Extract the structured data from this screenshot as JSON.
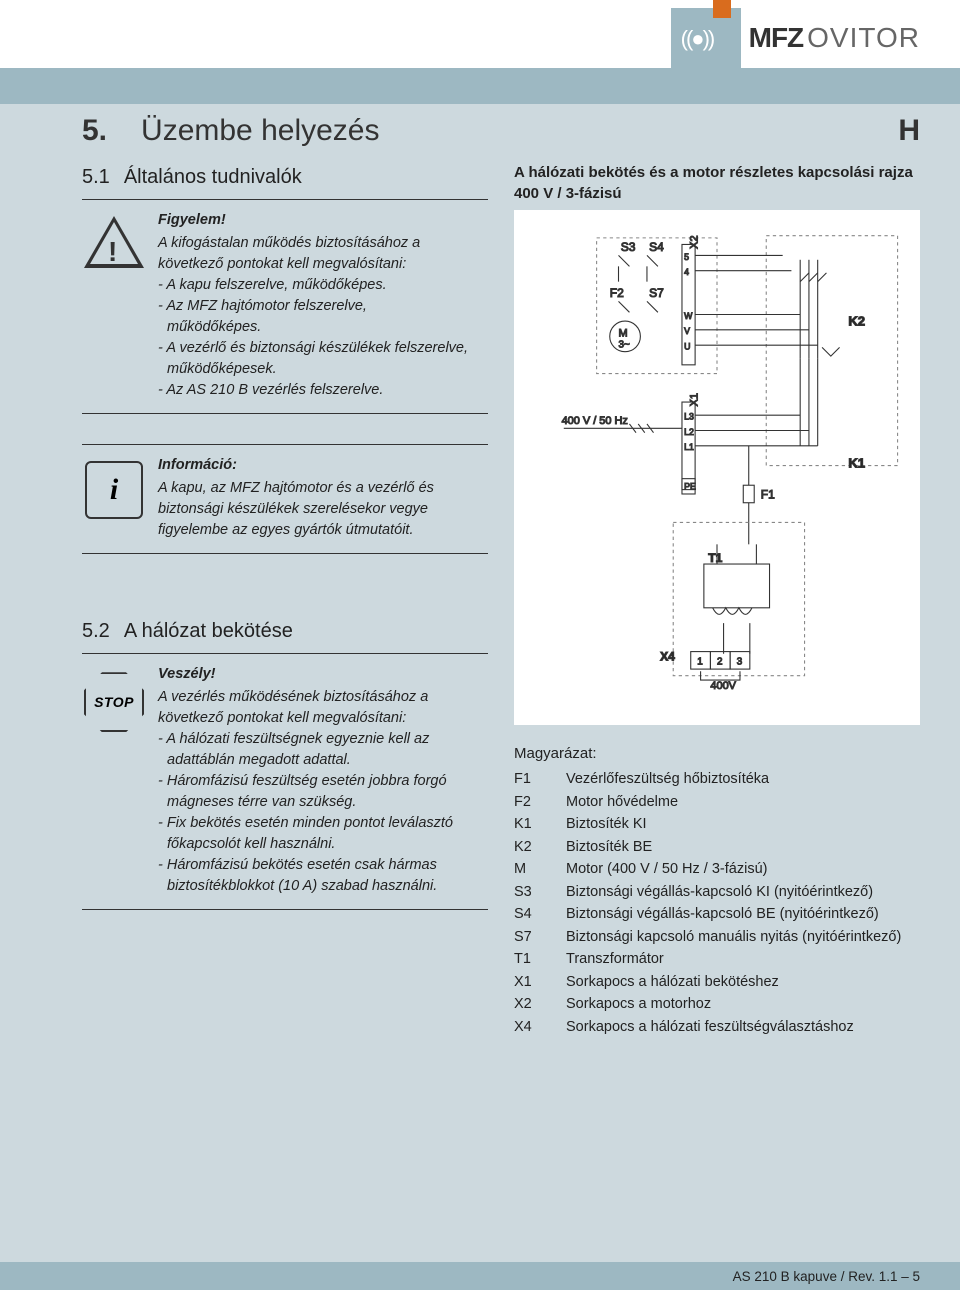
{
  "logo": {
    "mfz": "MFZ",
    "ovitor": "OVITOR"
  },
  "chapter": {
    "num": "5.",
    "title": "Üzembe helyezés",
    "lang": "H"
  },
  "s51": {
    "num": "5.1",
    "title": "Általános tudnivalók"
  },
  "s52": {
    "num": "5.2",
    "title": "A hálózat bekötése"
  },
  "warn": {
    "head": "Figyelem!",
    "l1": "A kifogástalan működés biztosításához a",
    "l2": "következő pontokat kell megvalósítani:",
    "b1": "- A kapu felszerelve, működőképes.",
    "b2": "- Az MFZ hajtómotor felszerelve,",
    "b2b": "működőképes.",
    "b3": "- A vezérlő és biztonsági készülékek felszerelve,",
    "b3b": "működőképesek.",
    "b4": "- Az AS 210 B vezérlés felszerelve."
  },
  "info": {
    "head": "Információ:",
    "l1": "A kapu, az MFZ hajtómotor és a vezérlő és",
    "l2": "biztonsági készülékek szerelésekor vegye",
    "l3": "figyelembe az egyes gyártók útmutatóit."
  },
  "danger": {
    "head": "Veszély!",
    "l1": "A vezérlés működésének biztosításához a",
    "l2": "következő pontokat kell megvalósítani:",
    "b1": "- A hálózati feszültségnek egyeznie kell az",
    "b1b": "adattáblán megadott adattal.",
    "b2": "- Háromfázisú feszültség esetén jobbra forgó",
    "b2b": "mágneses térre van szükség.",
    "b3": "- Fix bekötés esetén minden pontot leválasztó",
    "b3b": "főkapcsolót kell használni.",
    "b4": "- Háromfázisú bekötés esetén csak hármas",
    "b4b": "biztosítékblokkot (10 A) szabad használni."
  },
  "right": {
    "title": "A hálózati bekötés és a motor részletes kapcsolási rajza",
    "sub": "400 V / 3-fázisú"
  },
  "diagram": {
    "supply_label": "400 V / 50 Hz",
    "labels": {
      "S3": "S3",
      "S4": "S4",
      "F2": "F2",
      "S7": "S7",
      "M": "M",
      "M2": "3~",
      "X2": "X2",
      "X1": "X1",
      "K2": "K2",
      "K1": "K1",
      "F1": "F1",
      "T1": "T1",
      "X4": "X4",
      "PE": "PE",
      "L1": "L1",
      "L2": "L2",
      "L3": "L3",
      "t1": "1",
      "t2": "2",
      "t3": "3",
      "v400": "400V",
      "p5": "5",
      "p4": "4",
      "W": "W",
      "V": "V",
      "U": "U"
    },
    "colors": {
      "line": "#333333",
      "bg": "#ffffff",
      "dash": "#888888",
      "text": "#222222"
    }
  },
  "legend": {
    "title": "Magyarázat:",
    "items": [
      {
        "k": "F1",
        "v": "Vezérlőfeszültség hőbiztosítéka"
      },
      {
        "k": "F2",
        "v": "Motor hővédelme"
      },
      {
        "k": "K1",
        "v": "Biztosíték KI"
      },
      {
        "k": "K2",
        "v": "Biztosíték BE"
      },
      {
        "k": "M",
        "v": "Motor (400 V / 50 Hz / 3-fázisú)"
      },
      {
        "k": "S3",
        "v": "Biztonsági végállás-kapcsoló KI (nyitóérintkező)"
      },
      {
        "k": "S4",
        "v": "Biztonsági végállás-kapcsoló BE (nyitóérintkező)"
      },
      {
        "k": "S7",
        "v": "Biztonsági kapcsoló manuális nyitás (nyitóérintkező)"
      },
      {
        "k": "T1",
        "v": "Transzformátor"
      },
      {
        "k": "X1",
        "v": "Sorkapocs a hálózati bekötéshez"
      },
      {
        "k": "X2",
        "v": "Sorkapocs a motorhoz"
      },
      {
        "k": "X4",
        "v": "Sorkapocs a hálózati feszültségválasztáshoz"
      }
    ]
  },
  "footer": "AS 210 B kapuve / Rev. 1.1 – 5"
}
